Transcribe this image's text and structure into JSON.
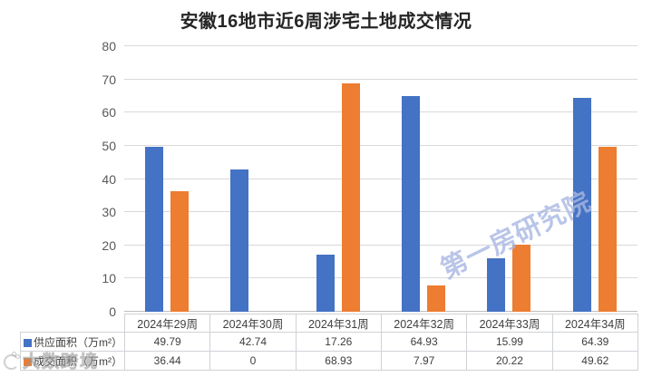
{
  "title": "安徽16地市近6周涉宅土地成交情况",
  "chart_data": {
    "type": "bar",
    "categories": [
      "2024年29周",
      "2024年30周",
      "2024年31周",
      "2024年32周",
      "2024年33周",
      "2024年34周"
    ],
    "series": [
      {
        "name": "供应面积（万m²）",
        "color": "#4472C4",
        "values": [
          49.79,
          42.74,
          17.26,
          64.93,
          15.99,
          64.39
        ]
      },
      {
        "name": "成交面积（万m²）",
        "color": "#ED7D31",
        "values": [
          36.44,
          0,
          68.93,
          7.97,
          20.22,
          49.62
        ]
      }
    ],
    "title": "安徽16地市近6周涉宅土地成交情况",
    "xlabel": "",
    "ylabel": "",
    "ylim": [
      0,
      80
    ],
    "y_ticks": [
      0,
      10,
      20,
      30,
      40,
      50,
      60,
      70,
      80
    ],
    "grid": true,
    "legend_position": "bottom-table"
  },
  "watermarks": {
    "diagonal": "第一房研究院",
    "logo": "大数跨境"
  },
  "colors": {
    "supply_bar": "#4472C4",
    "transaction_bar": "#ED7D31",
    "gridline": "#D9D9D9",
    "axis_text": "#595959",
    "table_border": "#CFD2D6",
    "table_text": "#3D3D3D",
    "title_text": "#262626",
    "diagonal_watermark": "rgba(168,182,226,0.8)"
  }
}
